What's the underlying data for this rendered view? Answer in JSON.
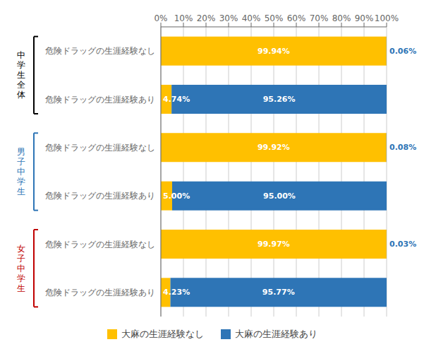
{
  "chart_data": {
    "type": "bar",
    "orientation": "horizontal",
    "stacked": true,
    "data_labels": true,
    "grid": true,
    "legend": "bottom",
    "categories": [
      "危険ドラッグの生涯経験なし",
      "危険ドラッグの生涯経験あり",
      "危険ドラッグの生涯経験なし",
      "危険ドラッグの生涯経験あり",
      "危険ドラッグの生涯経験なし",
      "危険ドラッグの生涯経験あり"
    ],
    "series": [
      {
        "name": "大麻の生涯経験なし",
        "color": "#FFC000",
        "values": [
          99.94,
          4.74,
          99.92,
          5.0,
          99.97,
          4.23
        ],
        "value_labels": [
          "99.94%",
          "4.74%",
          "99.92%",
          "5.00%",
          "99.97%",
          "4.23%"
        ]
      },
      {
        "name": "大麻の生涯経験あり",
        "color": "#2E75B6",
        "values": [
          0.06,
          95.26,
          0.08,
          95.0,
          0.03,
          95.77
        ],
        "value_labels": [
          "0.06%",
          "95.26%",
          "0.08%",
          "95.00%",
          "0.03%",
          "95.77%"
        ]
      }
    ],
    "xlim": [
      0,
      100
    ],
    "xticks": [
      {
        "value": 0,
        "label": "0%"
      },
      {
        "value": 10,
        "label": "10%"
      },
      {
        "value": 20,
        "label": "20%"
      },
      {
        "value": 30,
        "label": "30%"
      },
      {
        "value": 40,
        "label": "40%"
      },
      {
        "value": 50,
        "label": "50%"
      },
      {
        "value": 60,
        "label": "60%"
      },
      {
        "value": 70,
        "label": "70%"
      },
      {
        "value": 80,
        "label": "80%"
      },
      {
        "value": 90,
        "label": "90%"
      },
      {
        "value": 100,
        "label": "100%"
      }
    ],
    "groups": [
      {
        "name": "中学生全体",
        "color": "#000000"
      },
      {
        "name": "男子中学生",
        "color": "#2E75B6"
      },
      {
        "name": "女子中学生",
        "color": "#C00000"
      }
    ],
    "category_groups": [
      0,
      0,
      1,
      1,
      2,
      2
    ]
  }
}
